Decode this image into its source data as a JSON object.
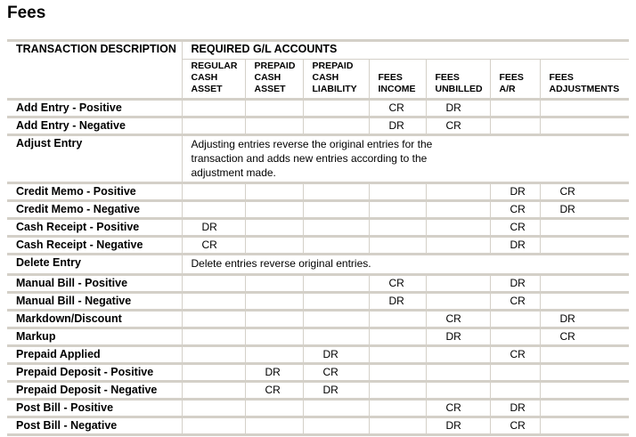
{
  "title": "Fees",
  "header": {
    "description": "TRANSACTION DESCRIPTION",
    "group": "REQUIRED G/L ACCOUNTS",
    "columns": [
      "REGULAR CASH ASSET",
      "PREPAID CASH ASSET",
      "PREPAID CASH LIABILITY",
      "FEES INCOME",
      "FEES UNBILLED",
      "FEES A/R",
      "FEES ADJUSTMENTS"
    ]
  },
  "rows": [
    {
      "name": "Add Entry - Positive",
      "values": [
        "",
        "",
        "",
        "CR",
        "DR",
        "",
        ""
      ]
    },
    {
      "name": "Add Entry - Negative",
      "values": [
        "",
        "",
        "",
        "DR",
        "CR",
        "",
        ""
      ]
    },
    {
      "name": "Adjust Entry",
      "note": "Adjusting entries reverse the original entries for the transaction and adds new entries according to the adjustment made."
    },
    {
      "name": "Credit Memo - Positive",
      "values": [
        "",
        "",
        "",
        "",
        "",
        "DR",
        "CR"
      ]
    },
    {
      "name": "Credit Memo - Negative",
      "values": [
        "",
        "",
        "",
        "",
        "",
        "CR",
        "DR"
      ]
    },
    {
      "name": "Cash Receipt - Positive",
      "values": [
        "DR",
        "",
        "",
        "",
        "",
        "CR",
        ""
      ]
    },
    {
      "name": "Cash Receipt - Negative",
      "values": [
        "CR",
        "",
        "",
        "",
        "",
        "DR",
        ""
      ]
    },
    {
      "name": "Delete Entry",
      "note": "Delete entries reverse original entries."
    },
    {
      "name": "Manual Bill - Positive",
      "values": [
        "",
        "",
        "",
        "CR",
        "",
        "DR",
        ""
      ]
    },
    {
      "name": "Manual Bill - Negative",
      "values": [
        "",
        "",
        "",
        "DR",
        "",
        "CR",
        ""
      ]
    },
    {
      "name": "Markdown/Discount",
      "values": [
        "",
        "",
        "",
        "",
        "CR",
        "",
        "DR"
      ]
    },
    {
      "name": "Markup",
      "values": [
        "",
        "",
        "",
        "",
        "DR",
        "",
        "CR"
      ]
    },
    {
      "name": "Prepaid Applied",
      "values": [
        "",
        "",
        "DR",
        "",
        "",
        "CR",
        ""
      ]
    },
    {
      "name": "Prepaid Deposit - Positive",
      "values": [
        "",
        "DR",
        "CR",
        "",
        "",
        "",
        ""
      ]
    },
    {
      "name": "Prepaid Deposit - Negative",
      "values": [
        "",
        "CR",
        "DR",
        "",
        "",
        "",
        ""
      ]
    },
    {
      "name": "Post Bill - Positive",
      "values": [
        "",
        "",
        "",
        "",
        "CR",
        "DR",
        ""
      ]
    },
    {
      "name": "Post Bill - Negative",
      "values": [
        "",
        "",
        "",
        "",
        "DR",
        "CR",
        ""
      ]
    }
  ]
}
